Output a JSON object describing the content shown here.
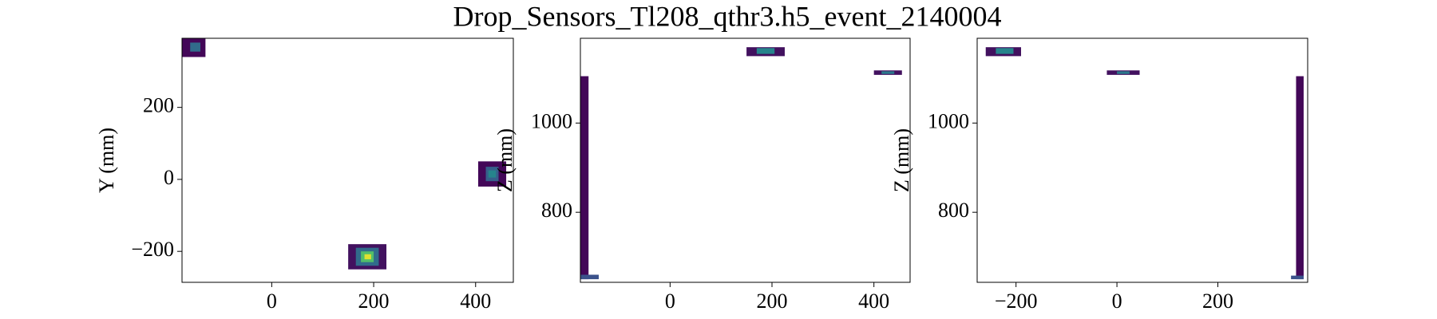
{
  "figure": {
    "title": "Drop_Sensors_Tl208_qthr3.h5_event_2140004"
  },
  "chart_data": [
    {
      "type": "heatmap",
      "ylabel": "Y (mm)",
      "colormap": "viridis",
      "xlim": [
        -176,
        474
      ],
      "ylim": [
        -286,
        392
      ],
      "xticks": [
        0,
        200,
        400
      ],
      "yticks": [
        {
          "value": -200,
          "label": "−200"
        },
        0,
        200
      ],
      "cells": [
        [
          -176,
          -130,
          340,
          392,
          0.02
        ],
        [
          -160,
          -140,
          355,
          380,
          0.35
        ],
        [
          405,
          460,
          -20,
          50,
          0.02
        ],
        [
          420,
          445,
          -5,
          35,
          0.3
        ],
        [
          425,
          440,
          5,
          25,
          0.45
        ],
        [
          150,
          225,
          -250,
          -180,
          0.05
        ],
        [
          165,
          210,
          -240,
          -190,
          0.35
        ],
        [
          175,
          200,
          -230,
          -200,
          0.7
        ],
        [
          182,
          195,
          -222,
          -208,
          0.95
        ]
      ]
    },
    {
      "type": "heatmap",
      "ylabel": "Z (mm)",
      "colormap": "viridis",
      "xlim": [
        -176,
        471
      ],
      "ylim": [
        643,
        1190
      ],
      "xticks": [
        0,
        200,
        400
      ],
      "yticks": [
        800,
        1000
      ],
      "cells": [
        [
          -176,
          -160,
          650,
          1105,
          0.02
        ],
        [
          -176,
          -140,
          650,
          660,
          0.25
        ],
        [
          150,
          225,
          1150,
          1170,
          0.05
        ],
        [
          170,
          205,
          1155,
          1168,
          0.45
        ],
        [
          400,
          455,
          1108,
          1118,
          0.05
        ],
        [
          415,
          440,
          1110,
          1116,
          0.4
        ]
      ]
    },
    {
      "type": "heatmap",
      "ylabel": "Z (mm)",
      "colormap": "viridis",
      "xlim": [
        -277,
        378
      ],
      "ylim": [
        643,
        1190
      ],
      "xticks": [
        {
          "value": -200,
          "label": "−200"
        },
        0,
        200
      ],
      "yticks": [
        800,
        1000
      ],
      "cells": [
        [
          -260,
          -190,
          1150,
          1170,
          0.05
        ],
        [
          -240,
          -205,
          1155,
          1168,
          0.45
        ],
        [
          -20,
          45,
          1108,
          1118,
          0.05
        ],
        [
          0,
          25,
          1110,
          1116,
          0.4
        ],
        [
          355,
          370,
          650,
          1105,
          0.02
        ],
        [
          345,
          370,
          650,
          658,
          0.25
        ]
      ]
    }
  ]
}
